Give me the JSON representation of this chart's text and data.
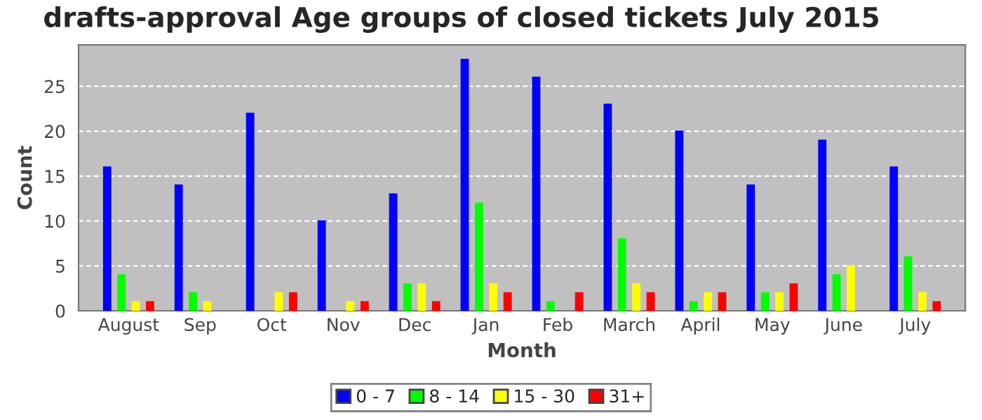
{
  "chart_data": {
    "type": "bar",
    "title": "drafts-approval Age groups of closed tickets July 2015",
    "xlabel": "Month",
    "ylabel": "Count",
    "categories": [
      "August",
      "Sep",
      "Oct",
      "Nov",
      "Dec",
      "Jan",
      "Feb",
      "March",
      "April",
      "May",
      "June",
      "July"
    ],
    "series": [
      {
        "name": "0 - 7",
        "color": "#0000ff",
        "values": [
          16,
          14,
          22,
          10,
          13,
          28,
          26,
          23,
          20,
          14,
          19,
          16
        ]
      },
      {
        "name": "8 - 14",
        "color": "#00ff00",
        "values": [
          4,
          2,
          0,
          0,
          3,
          12,
          1,
          8,
          1,
          2,
          4,
          6
        ]
      },
      {
        "name": "15 - 30",
        "color": "#ffff00",
        "values": [
          1,
          1,
          2,
          1,
          3,
          3,
          0,
          3,
          2,
          2,
          5,
          2
        ]
      },
      {
        "name": "31+",
        "color": "#ff0000",
        "values": [
          1,
          0,
          2,
          1,
          1,
          2,
          2,
          2,
          2,
          3,
          0,
          1
        ]
      }
    ],
    "ylim": [
      0,
      29.6
    ],
    "yticks": [
      0,
      5,
      10,
      15,
      20,
      25
    ],
    "grid": "y",
    "legend": "bottom"
  }
}
